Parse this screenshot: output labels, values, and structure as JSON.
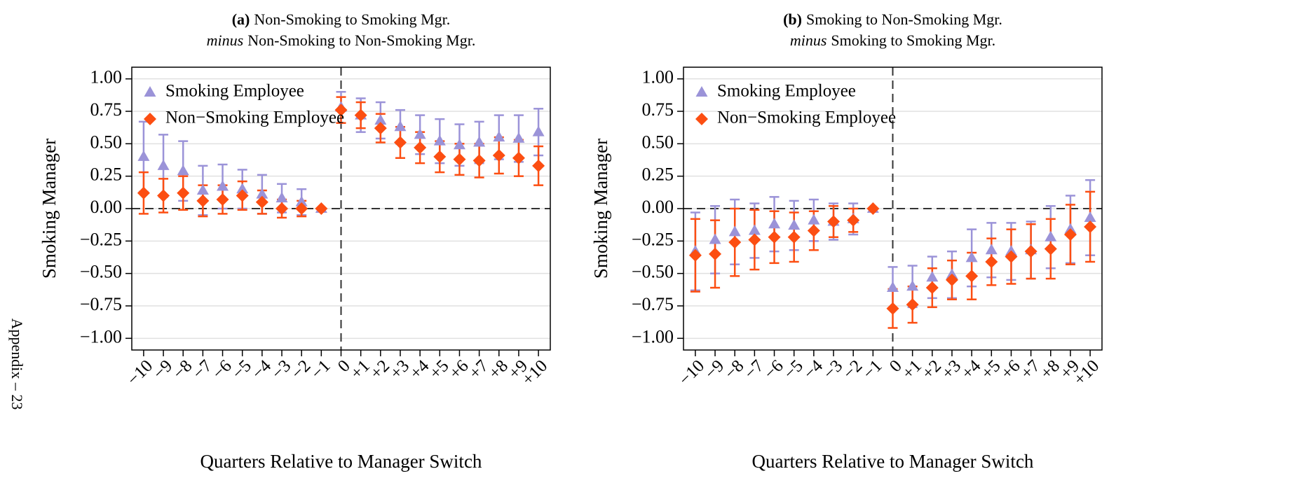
{
  "page_label": "Appendix – 23",
  "chart_data": [
    {
      "type": "errorbar",
      "title_label": "(a)",
      "title_line1": "Non-Smoking to Smoking Mgr.",
      "title_emphasis": "minus",
      "title_line2": "Non-Smoking to Non-Smoking Mgr.",
      "x_label": "Quarters Relative to Manager Switch",
      "y_label": "Smoking Manager",
      "categories": [
        "−10",
        "−9",
        "−8",
        "−7",
        "−6",
        "−5",
        "−4",
        "−3",
        "−2",
        "−1",
        "0",
        "+1",
        "+2",
        "+3",
        "+4",
        "+5",
        "+6",
        "+7",
        "+8",
        "+9",
        "+10"
      ],
      "ylim": [
        -1.09,
        1.09
      ],
      "yticks": [
        {
          "value": 1,
          "label": "1.00"
        },
        {
          "value": 0.75,
          "label": "0.75"
        },
        {
          "value": 0.5,
          "label": "0.50"
        },
        {
          "value": 0.25,
          "label": "0.25"
        },
        {
          "value": 0,
          "label": "0.00"
        },
        {
          "value": -0.25,
          "label": "−0.25"
        },
        {
          "value": -0.5,
          "label": "−0.50"
        },
        {
          "value": -0.75,
          "label": "−0.75"
        },
        {
          "value": -1,
          "label": "−1.00"
        }
      ],
      "grid": true,
      "legend": "upper left",
      "series": [
        {
          "name": "Smoking Employee",
          "color": "#9b93d8",
          "marker": "triangle",
          "values": [
            0.4,
            0.33,
            0.29,
            0.14,
            0.17,
            0.15,
            0.11,
            0.08,
            0.05,
            0,
            0.78,
            0.72,
            0.68,
            0.63,
            0.57,
            0.52,
            0.49,
            0.51,
            0.55,
            0.54,
            0.59
          ],
          "errors": [
            0.27,
            0.24,
            0.23,
            0.19,
            0.17,
            0.15,
            0.15,
            0.11,
            0.1,
            0,
            0.12,
            0.13,
            0.14,
            0.13,
            0.15,
            0.17,
            0.16,
            0.16,
            0.17,
            0.18,
            0.18
          ]
        },
        {
          "name": "Non−Smoking Employee",
          "color": "#fc4e12",
          "marker": "diamond",
          "values": [
            0.12,
            0.1,
            0.12,
            0.06,
            0.07,
            0.1,
            0.05,
            0.0,
            0.0,
            0,
            0.76,
            0.72,
            0.62,
            0.51,
            0.47,
            0.4,
            0.38,
            0.37,
            0.41,
            0.39,
            0.33
          ],
          "errors": [
            0.16,
            0.13,
            0.13,
            0.12,
            0.11,
            0.11,
            0.09,
            0.07,
            0.06,
            0,
            0.1,
            0.1,
            0.11,
            0.12,
            0.12,
            0.12,
            0.12,
            0.13,
            0.14,
            0.14,
            0.15
          ]
        }
      ]
    },
    {
      "type": "errorbar",
      "title_label": "(b)",
      "title_line1": "Smoking to Non-Smoking Mgr.",
      "title_emphasis": "minus",
      "title_line2": "Smoking to Smoking Mgr.",
      "x_label": "Quarters Relative to Manager Switch",
      "y_label": "Smoking Manager",
      "categories": [
        "−10",
        "−9",
        "−8",
        "−7",
        "−6",
        "−5",
        "−4",
        "−3",
        "−2",
        "−1",
        "0",
        "+1",
        "+2",
        "+3",
        "+4",
        "+5",
        "+6",
        "+7",
        "+8",
        "+9",
        "+10"
      ],
      "ylim": [
        -1.09,
        1.09
      ],
      "yticks": [
        {
          "value": 1,
          "label": "1.00"
        },
        {
          "value": 0.75,
          "label": "0.75"
        },
        {
          "value": 0.5,
          "label": "0.50"
        },
        {
          "value": 0.25,
          "label": "0.25"
        },
        {
          "value": 0,
          "label": "0.00"
        },
        {
          "value": -0.25,
          "label": "−0.25"
        },
        {
          "value": -0.5,
          "label": "−0.50"
        },
        {
          "value": -0.75,
          "label": "−0.75"
        },
        {
          "value": -1,
          "label": "−1.00"
        }
      ],
      "grid": true,
      "legend": "upper left",
      "series": [
        {
          "name": "Smoking Employee",
          "color": "#9b93d8",
          "marker": "triangle",
          "values": [
            -0.33,
            -0.24,
            -0.18,
            -0.17,
            -0.12,
            -0.13,
            -0.09,
            -0.1,
            -0.08,
            0,
            -0.61,
            -0.6,
            -0.53,
            -0.51,
            -0.38,
            -0.32,
            -0.33,
            -0.32,
            -0.22,
            -0.16,
            -0.07
          ],
          "errors": [
            0.3,
            0.26,
            0.25,
            0.21,
            0.21,
            0.19,
            0.16,
            0.14,
            0.12,
            0,
            0.16,
            0.16,
            0.16,
            0.18,
            0.22,
            0.21,
            0.22,
            0.22,
            0.24,
            0.26,
            0.29
          ]
        },
        {
          "name": "Non−Smoking Employee",
          "color": "#fc4e12",
          "marker": "diamond",
          "values": [
            -0.36,
            -0.35,
            -0.26,
            -0.24,
            -0.22,
            -0.22,
            -0.17,
            -0.1,
            -0.09,
            0,
            -0.77,
            -0.74,
            -0.61,
            -0.55,
            -0.52,
            -0.41,
            -0.37,
            -0.33,
            -0.31,
            -0.2,
            -0.14
          ],
          "errors": [
            0.28,
            0.26,
            0.26,
            0.23,
            0.2,
            0.19,
            0.15,
            0.12,
            0.09,
            0,
            0.15,
            0.14,
            0.15,
            0.15,
            0.18,
            0.18,
            0.21,
            0.21,
            0.23,
            0.23,
            0.27
          ]
        }
      ]
    }
  ]
}
